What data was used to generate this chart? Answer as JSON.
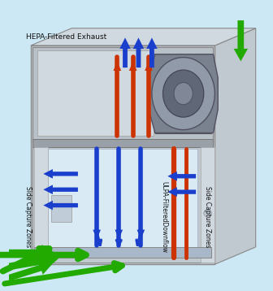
{
  "bg_color": "#cce8f4",
  "title": "HEPA-Filtered Exhaust",
  "label_ulpa": "ULPA-FilteredDownflow",
  "label_side_left": "Side Capture Zones",
  "label_side_right": "Side Capture Zones",
  "blue": "#1a3fcc",
  "orange": "#cc3300",
  "green": "#22aa00",
  "gray_outer": "#b8bec5",
  "gray_mid": "#c8ced4",
  "gray_inner": "#d8dfe5",
  "gray_work": "#dce8f0",
  "font_size": 6.5
}
